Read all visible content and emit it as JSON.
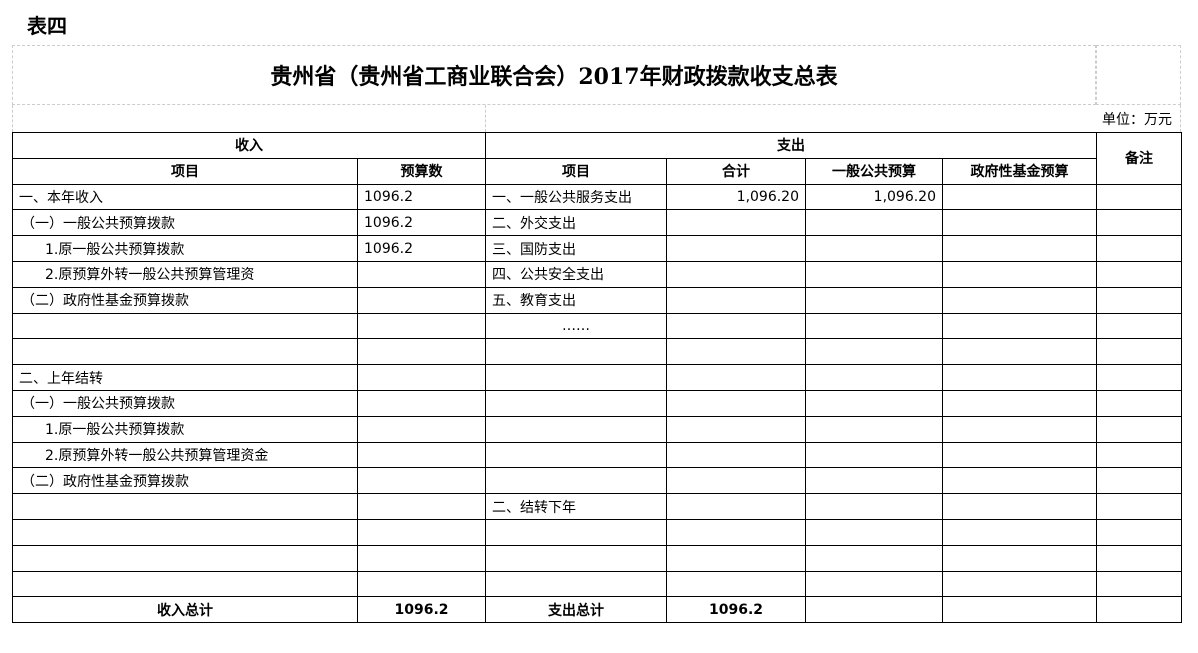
{
  "label": "表四",
  "title": "贵州省（贵州省工商业联合会）2017年财政拨款收支总表",
  "unit": "单位：万元",
  "headers": {
    "income": "收入",
    "expense": "支出",
    "remark": "备注",
    "item": "项目",
    "budget": "预算数",
    "exp_item": "项目",
    "total": "合计",
    "general": "一般公共预算",
    "fund": "政府性基金预算"
  },
  "rows": [
    {
      "in_item": "一、本年收入",
      "in_val": "1096.2",
      "ex_item": "一、一般公共服务支出",
      "ex_total": "1,096.20",
      "ex_general": "1,096.20",
      "ex_fund": "",
      "remark": ""
    },
    {
      "in_item": "（一）一般公共预算拨款",
      "in_val": "1096.2",
      "ex_item": "二、外交支出",
      "ex_total": "",
      "ex_general": "",
      "ex_fund": "",
      "remark": ""
    },
    {
      "in_item": "1.原一般公共预算拨款",
      "in_val": "1096.2",
      "ex_item": "三、国防支出",
      "ex_total": "",
      "ex_general": "",
      "ex_fund": "",
      "remark": ""
    },
    {
      "in_item": "2.原预算外转一般公共预算管理资",
      "in_val": "",
      "ex_item": "四、公共安全支出",
      "ex_total": "",
      "ex_general": "",
      "ex_fund": "",
      "remark": ""
    },
    {
      "in_item": "（二）政府性基金预算拨款",
      "in_val": "",
      "ex_item": "五、教育支出",
      "ex_total": "",
      "ex_general": "",
      "ex_fund": "",
      "remark": ""
    },
    {
      "in_item": "",
      "in_val": "",
      "ex_item": "……",
      "ex_total": "",
      "ex_general": "",
      "ex_fund": "",
      "remark": ""
    },
    {
      "in_item": "",
      "in_val": "",
      "ex_item": "",
      "ex_total": "",
      "ex_general": "",
      "ex_fund": "",
      "remark": ""
    },
    {
      "in_item": "二、上年结转",
      "in_val": "",
      "ex_item": "",
      "ex_total": "",
      "ex_general": "",
      "ex_fund": "",
      "remark": ""
    },
    {
      "in_item": "（一）一般公共预算拨款",
      "in_val": "",
      "ex_item": "",
      "ex_total": "",
      "ex_general": "",
      "ex_fund": "",
      "remark": ""
    },
    {
      "in_item": "1.原一般公共预算拨款",
      "in_val": "",
      "ex_item": "",
      "ex_total": "",
      "ex_general": "",
      "ex_fund": "",
      "remark": ""
    },
    {
      "in_item": "2.原预算外转一般公共预算管理资金",
      "in_val": "",
      "ex_item": "",
      "ex_total": "",
      "ex_general": "",
      "ex_fund": "",
      "remark": ""
    },
    {
      "in_item": "（二）政府性基金预算拨款",
      "in_val": "",
      "ex_item": "",
      "ex_total": "",
      "ex_general": "",
      "ex_fund": "",
      "remark": ""
    },
    {
      "in_item": "",
      "in_val": "",
      "ex_item": "二、结转下年",
      "ex_total": "",
      "ex_general": "",
      "ex_fund": "",
      "remark": ""
    },
    {
      "in_item": "",
      "in_val": "",
      "ex_item": "",
      "ex_total": "",
      "ex_general": "",
      "ex_fund": "",
      "remark": ""
    },
    {
      "in_item": "",
      "in_val": "",
      "ex_item": "",
      "ex_total": "",
      "ex_general": "",
      "ex_fund": "",
      "remark": ""
    },
    {
      "in_item": "",
      "in_val": "",
      "ex_item": "",
      "ex_total": "",
      "ex_general": "",
      "ex_fund": "",
      "remark": ""
    }
  ],
  "totals": {
    "in_label": "收入总计",
    "in_val": "1096.2",
    "ex_label": "支出总计",
    "ex_val": "1096.2"
  }
}
